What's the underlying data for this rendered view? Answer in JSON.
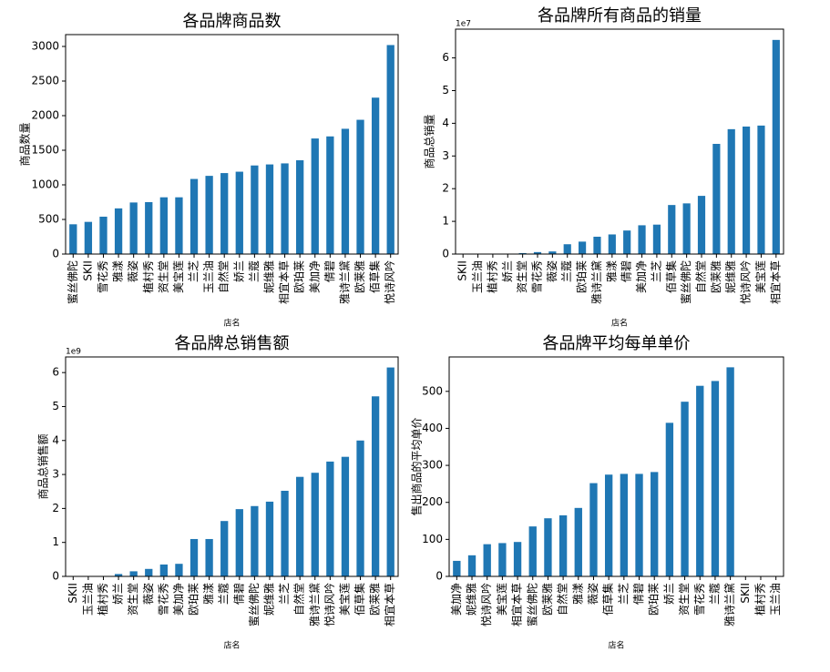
{
  "chart_data": [
    {
      "type": "bar",
      "title": "各品牌商品数",
      "xlabel": "店名",
      "ylabel": "商品数量",
      "color": "#1f77b4",
      "categories": [
        "蜜丝佛陀",
        "SKII",
        "雪花秀",
        "雅漾",
        "薇姿",
        "植村秀",
        "资生堂",
        "美宝莲",
        "兰芝",
        "玉兰油",
        "自然堂",
        "娇兰",
        "兰蔻",
        "妮维雅",
        "相宜本草",
        "欧珀莱",
        "美加净",
        "倩碧",
        "雅诗兰黛",
        "欧莱雅",
        "佰草集",
        "悦诗风吟"
      ],
      "values": [
        430,
        465,
        540,
        660,
        745,
        750,
        820,
        820,
        1085,
        1130,
        1170,
        1190,
        1280,
        1295,
        1310,
        1355,
        1670,
        1700,
        1810,
        1940,
        2260,
        3020
      ],
      "ylim": [
        0,
        3171
      ],
      "yticks": [
        0,
        500,
        1000,
        1500,
        2000,
        2500,
        3000
      ]
    },
    {
      "type": "bar",
      "title": "各品牌所有商品的销量",
      "xlabel": "店名",
      "ylabel": "商品总销量",
      "offset_text": "1e7",
      "color": "#1f77b4",
      "categories": [
        "SKII",
        "玉兰油",
        "植村秀",
        "娇兰",
        "资生堂",
        "雪花秀",
        "薇姿",
        "兰蔻",
        "欧珀莱",
        "雅诗兰黛",
        "雅漾",
        "倩碧",
        "美加净",
        "兰芝",
        "佰草集",
        "蜜丝佛陀",
        "自然堂",
        "欧莱雅",
        "妮维雅",
        "悦诗风吟",
        "美宝莲",
        "相宜本草"
      ],
      "values": [
        0,
        0,
        0,
        0.01,
        0.03,
        0.06,
        0.08,
        0.3,
        0.38,
        0.53,
        0.6,
        0.72,
        0.88,
        0.9,
        1.5,
        1.55,
        1.78,
        3.37,
        3.82,
        3.9,
        3.93,
        6.55
      ],
      "ylim": [
        0,
        6.88
      ],
      "yticks": [
        0,
        1,
        2,
        3,
        4,
        5,
        6
      ]
    },
    {
      "type": "bar",
      "title": "各品牌总销售额",
      "xlabel": "店名",
      "ylabel": "商品总销售额",
      "offset_text": "1e9",
      "color": "#1f77b4",
      "categories": [
        "SKII",
        "玉兰油",
        "植村秀",
        "娇兰",
        "资生堂",
        "薇姿",
        "雪花秀",
        "美加净",
        "欧珀莱",
        "雅漾",
        "兰蔻",
        "倩碧",
        "蜜丝佛陀",
        "妮维雅",
        "兰芝",
        "自然堂",
        "雅诗兰黛",
        "悦诗风吟",
        "美宝莲",
        "佰草集",
        "欧莱雅",
        "相宜本草"
      ],
      "values": [
        0,
        0,
        0,
        0.07,
        0.15,
        0.22,
        0.35,
        0.37,
        1.1,
        1.1,
        1.63,
        1.98,
        2.07,
        2.2,
        2.52,
        2.93,
        3.05,
        3.38,
        3.52,
        4.0,
        5.3,
        6.15
      ],
      "ylim": [
        0,
        6.46
      ],
      "yticks": [
        0,
        1,
        2,
        3,
        4,
        5,
        6
      ]
    },
    {
      "type": "bar",
      "title": "各品牌平均每单单价",
      "xlabel": "店名",
      "ylabel": "售出商品的平均单价",
      "color": "#1f77b4",
      "categories": [
        "美加净",
        "妮维雅",
        "悦诗风吟",
        "美宝莲",
        "相宜本草",
        "蜜丝佛陀",
        "欧莱雅",
        "自然堂",
        "雅漾",
        "薇姿",
        "佰草集",
        "兰芝",
        "倩碧",
        "欧珀莱",
        "娇兰",
        "资生堂",
        "雪花秀",
        "兰蔻",
        "雅诗兰黛",
        "SKII",
        "植村秀",
        "玉兰油"
      ],
      "values": [
        42,
        57,
        87,
        90,
        93,
        135,
        157,
        165,
        185,
        252,
        275,
        277,
        277,
        282,
        415,
        472,
        515,
        528,
        565,
        0,
        0,
        0
      ],
      "ylim": [
        0,
        593
      ],
      "yticks": [
        0,
        100,
        200,
        300,
        400,
        500
      ]
    }
  ]
}
